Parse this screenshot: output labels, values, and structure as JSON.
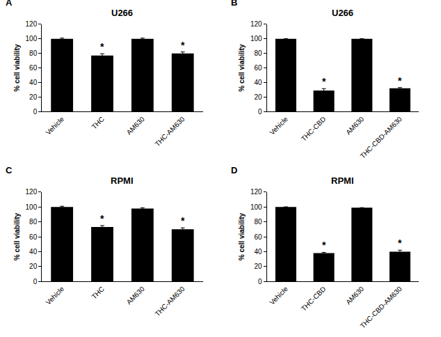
{
  "chart_data": [
    {
      "type": "bar",
      "panel": "A",
      "title": "U266",
      "y_label": "% cell viability",
      "categories": [
        "Vehicle",
        "THC",
        "AM630",
        "THC-AM630"
      ],
      "values": [
        100,
        77,
        100,
        80
      ],
      "errors": [
        1,
        2.5,
        1,
        2
      ],
      "significance": [
        null,
        "*",
        null,
        "*"
      ],
      "color": "#000000",
      "ylim": [
        0,
        120
      ],
      "yticks": [
        0,
        20,
        40,
        60,
        80,
        100,
        120
      ],
      "grid": false
    },
    {
      "type": "bar",
      "panel": "B",
      "title": "U266",
      "y_label": "% cell viability",
      "categories": [
        "Vehicle",
        "THC-CBD",
        "AM630",
        "THC-CBD-AM630"
      ],
      "values": [
        100,
        29,
        100,
        32
      ],
      "errors": [
        0,
        2.5,
        0,
        1
      ],
      "significance": [
        null,
        "*",
        null,
        "*"
      ],
      "color": "#000000",
      "ylim": [
        0,
        120
      ],
      "yticks": [
        0,
        20,
        40,
        60,
        80,
        100,
        120
      ],
      "grid": false
    },
    {
      "type": "bar",
      "panel": "C",
      "title": "RPMI",
      "y_label": "% cell viability",
      "categories": [
        "Vehicle",
        "THC",
        "AM630",
        "THC-AM630"
      ],
      "values": [
        100,
        73,
        98,
        70
      ],
      "errors": [
        1,
        2,
        1,
        2
      ],
      "significance": [
        null,
        "*",
        null,
        "*"
      ],
      "color": "#000000",
      "ylim": [
        0,
        120
      ],
      "yticks": [
        0,
        20,
        40,
        60,
        80,
        100,
        120
      ],
      "grid": false
    },
    {
      "type": "bar",
      "panel": "D",
      "title": "RPMI",
      "y_label": "% cell viability",
      "categories": [
        "Vehicle",
        "THC-CBD",
        "AM630",
        "THC-CBD-AM630"
      ],
      "values": [
        100,
        38,
        99,
        40
      ],
      "errors": [
        0,
        1,
        0,
        2
      ],
      "significance": [
        null,
        "*",
        null,
        "*"
      ],
      "color": "#000000",
      "ylim": [
        0,
        120
      ],
      "yticks": [
        0,
        20,
        40,
        60,
        80,
        100,
        120
      ],
      "grid": false
    }
  ]
}
